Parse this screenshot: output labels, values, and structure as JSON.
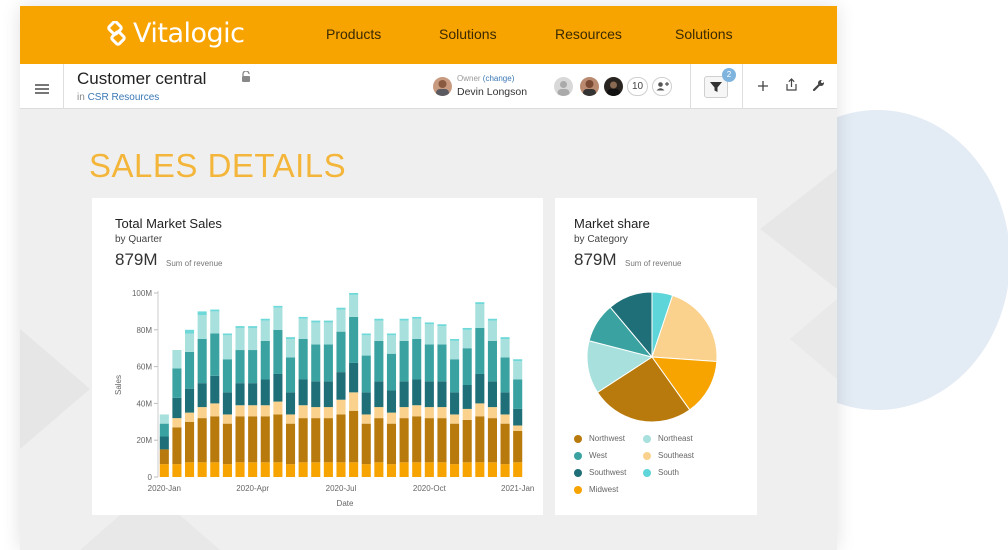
{
  "brand": {
    "name": "Vitalogic",
    "accent": "#f7a300"
  },
  "nav": {
    "links": [
      "Products",
      "Solutions",
      "Resources",
      "Solutions"
    ]
  },
  "doc": {
    "title": "Customer central",
    "location_prefix": "in",
    "location": "CSR Resources",
    "owner_label": "Owner",
    "owner_change": "(change)",
    "owner_name": "Devin Longson",
    "collaborator_count": "10",
    "filter_count": "2"
  },
  "page": {
    "title": "SALES DETAILS"
  },
  "sales_card": {
    "title": "Total Market Sales",
    "subtitle": "by Quarter",
    "value": "879M",
    "value_label": "Sum of revenue"
  },
  "share_card": {
    "title": "Market share",
    "subtitle": "by Category",
    "value": "879M",
    "value_label": "Sum of revenue"
  },
  "chart_data": [
    {
      "type": "bar",
      "stacked": true,
      "xlabel": "Date",
      "ylabel": "Sales",
      "ylim": [
        0,
        100
      ],
      "y_ticks": [
        "0",
        "20M",
        "40M",
        "60M",
        "80M",
        "100M"
      ],
      "x_ticks": [
        "2020-Jan",
        "2020-Apr",
        "2020-Jul",
        "2020-Oct",
        "2021-Jan"
      ],
      "categories": [
        "2020-Jan",
        "2020-Jan+1",
        "2020-Jan+2",
        "2020-Jan+3",
        "2020-Jan+4",
        "2020-Jan+5",
        "2020-Jan+6",
        "2020-Apr",
        "2020-Apr+1",
        "2020-Apr+2",
        "2020-Apr+3",
        "2020-Apr+4",
        "2020-Jul-2",
        "2020-Jul-1",
        "2020-Jul",
        "2020-Jul+1",
        "2020-Jul+2",
        "2020-Jul+3",
        "2020-Jul+4",
        "2020-Jul+5",
        "2020-Oct-1",
        "2020-Oct",
        "2020-Oct+1",
        "2020-Oct+2",
        "2020-Oct+3",
        "2020-Oct+4",
        "2020-Oct+5",
        "2021-Jan-1",
        "2021-Jan"
      ],
      "series": [
        {
          "name": "Midwest",
          "color": "#f7a300",
          "values": [
            7,
            7,
            8,
            8,
            8,
            7,
            8,
            8,
            8,
            8,
            7,
            8,
            8,
            8,
            8,
            8,
            7,
            8,
            7,
            8,
            8,
            8,
            8,
            7,
            8,
            8,
            8,
            7,
            8
          ]
        },
        {
          "name": "Northwest",
          "color": "#b87a0c",
          "values": [
            8,
            20,
            22,
            24,
            25,
            22,
            25,
            25,
            25,
            26,
            22,
            24,
            24,
            24,
            26,
            28,
            22,
            24,
            22,
            24,
            25,
            24,
            24,
            22,
            23,
            25,
            24,
            22,
            17
          ]
        },
        {
          "name": "Southeast",
          "color": "#fad28e",
          "values": [
            0,
            5,
            5,
            6,
            7,
            5,
            6,
            6,
            6,
            7,
            5,
            7,
            6,
            6,
            8,
            10,
            5,
            6,
            6,
            6,
            6,
            6,
            6,
            5,
            6,
            7,
            6,
            5,
            3
          ]
        },
        {
          "name": "Southwest",
          "color": "#1f6f78",
          "values": [
            7,
            11,
            13,
            13,
            15,
            12,
            12,
            12,
            14,
            15,
            12,
            14,
            14,
            14,
            15,
            16,
            12,
            14,
            12,
            14,
            14,
            14,
            14,
            12,
            13,
            16,
            14,
            12,
            9
          ]
        },
        {
          "name": "West",
          "color": "#3aa3a1",
          "values": [
            7,
            16,
            20,
            24,
            23,
            18,
            18,
            18,
            21,
            24,
            19,
            22,
            20,
            20,
            22,
            25,
            20,
            22,
            20,
            22,
            22,
            20,
            20,
            18,
            20,
            25,
            22,
            19,
            16
          ]
        },
        {
          "name": "Northeast",
          "color": "#a7e0dc",
          "values": [
            5,
            10,
            10,
            13,
            12,
            13,
            12,
            12,
            11,
            12,
            10,
            11,
            12,
            12,
            12,
            12,
            11,
            11,
            10,
            11,
            11,
            11,
            10,
            10,
            10,
            13,
            11,
            10,
            10
          ]
        },
        {
          "name": "South",
          "color": "#6fd8d8",
          "values": [
            0,
            0,
            2,
            2,
            1,
            1,
            1,
            1,
            1,
            1,
            1,
            1,
            1,
            1,
            1,
            1,
            1,
            1,
            1,
            1,
            1,
            1,
            1,
            1,
            1,
            1,
            1,
            1,
            1
          ]
        }
      ]
    },
    {
      "type": "pie",
      "title": "Market share",
      "series": [
        {
          "name": "South",
          "color": "#5ed5d8",
          "value": 0.0514
        },
        {
          "name": "Southeast",
          "color": "#fad28e",
          "value": 0.2097
        },
        {
          "name": "Midwest",
          "color": "#f7a300",
          "value": 0.1403
        },
        {
          "name": "Northwest",
          "color": "#b87a0c",
          "value": 0.2569
        },
        {
          "name": "Northeast",
          "color": "#a7e0dc",
          "value": 0.1319
        },
        {
          "name": "West",
          "color": "#3aa3a1",
          "value": 0.0986
        },
        {
          "name": "Southwest",
          "color": "#1f6f78",
          "value": 0.1111
        }
      ],
      "legend": [
        "Northwest",
        "Northeast",
        "West",
        "Southeast",
        "Southwest",
        "South",
        "Midwest"
      ]
    }
  ]
}
